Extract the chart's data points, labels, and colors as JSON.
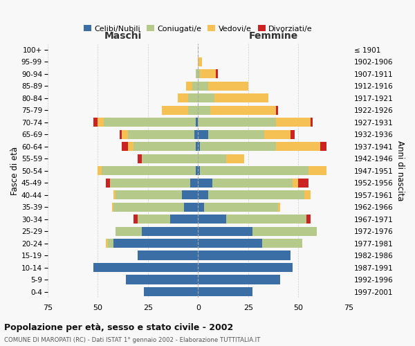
{
  "age_groups": [
    "0-4",
    "5-9",
    "10-14",
    "15-19",
    "20-24",
    "25-29",
    "30-34",
    "35-39",
    "40-44",
    "45-49",
    "50-54",
    "55-59",
    "60-64",
    "65-69",
    "70-74",
    "75-79",
    "80-84",
    "85-89",
    "90-94",
    "95-99",
    "100+"
  ],
  "birth_years": [
    "1997-2001",
    "1992-1996",
    "1987-1991",
    "1982-1986",
    "1977-1981",
    "1972-1976",
    "1967-1971",
    "1962-1966",
    "1957-1961",
    "1952-1956",
    "1947-1951",
    "1942-1946",
    "1937-1941",
    "1932-1936",
    "1927-1931",
    "1922-1926",
    "1917-1921",
    "1912-1916",
    "1907-1911",
    "1902-1906",
    "≤ 1901"
  ],
  "maschi": {
    "celibi": [
      27,
      36,
      52,
      30,
      42,
      28,
      14,
      7,
      8,
      4,
      1,
      0,
      1,
      2,
      1,
      0,
      0,
      0,
      0,
      0,
      0
    ],
    "coniugati": [
      0,
      0,
      0,
      0,
      3,
      13,
      16,
      35,
      33,
      40,
      47,
      28,
      31,
      33,
      46,
      5,
      5,
      3,
      1,
      0,
      0
    ],
    "vedovi": [
      0,
      0,
      0,
      0,
      1,
      0,
      0,
      1,
      1,
      0,
      2,
      0,
      3,
      3,
      3,
      13,
      5,
      3,
      0,
      0,
      0
    ],
    "divorziati": [
      0,
      0,
      0,
      0,
      0,
      0,
      2,
      0,
      0,
      2,
      0,
      2,
      3,
      1,
      2,
      0,
      0,
      0,
      0,
      0,
      0
    ]
  },
  "femmine": {
    "nubili": [
      27,
      41,
      47,
      46,
      32,
      27,
      14,
      3,
      5,
      7,
      1,
      0,
      1,
      5,
      0,
      0,
      0,
      0,
      0,
      0,
      0
    ],
    "coniugate": [
      0,
      0,
      0,
      0,
      20,
      32,
      40,
      37,
      48,
      40,
      54,
      14,
      38,
      28,
      39,
      6,
      8,
      5,
      1,
      0,
      0
    ],
    "vedove": [
      0,
      0,
      0,
      0,
      0,
      0,
      0,
      1,
      3,
      3,
      9,
      9,
      22,
      13,
      17,
      33,
      27,
      20,
      8,
      2,
      0
    ],
    "divorziate": [
      0,
      0,
      0,
      0,
      0,
      0,
      2,
      0,
      0,
      5,
      0,
      0,
      3,
      2,
      1,
      1,
      0,
      0,
      1,
      0,
      0
    ]
  },
  "colors": {
    "celibi": "#3a6ea5",
    "coniugati": "#b5c98a",
    "vedovi": "#f5c155",
    "divorziati": "#cc2222"
  },
  "xlim": 75,
  "title": "Popolazione per età, sesso e stato civile - 2002",
  "subtitle": "COMUNE DI MAROPATI (RC) - Dati ISTAT 1° gennaio 2002 - Elaborazione TUTTITALIA.IT",
  "ylabel_left": "Fasce di età",
  "ylabel_right": "Anni di nascita",
  "xlabel_maschi": "Maschi",
  "xlabel_femmine": "Femmine",
  "legend_labels": [
    "Celibi/Nubili",
    "Coniugati/e",
    "Vedovi/e",
    "Divorziati/e"
  ],
  "bg_color": "#f8f8f8",
  "grid_color": "#cccccc"
}
